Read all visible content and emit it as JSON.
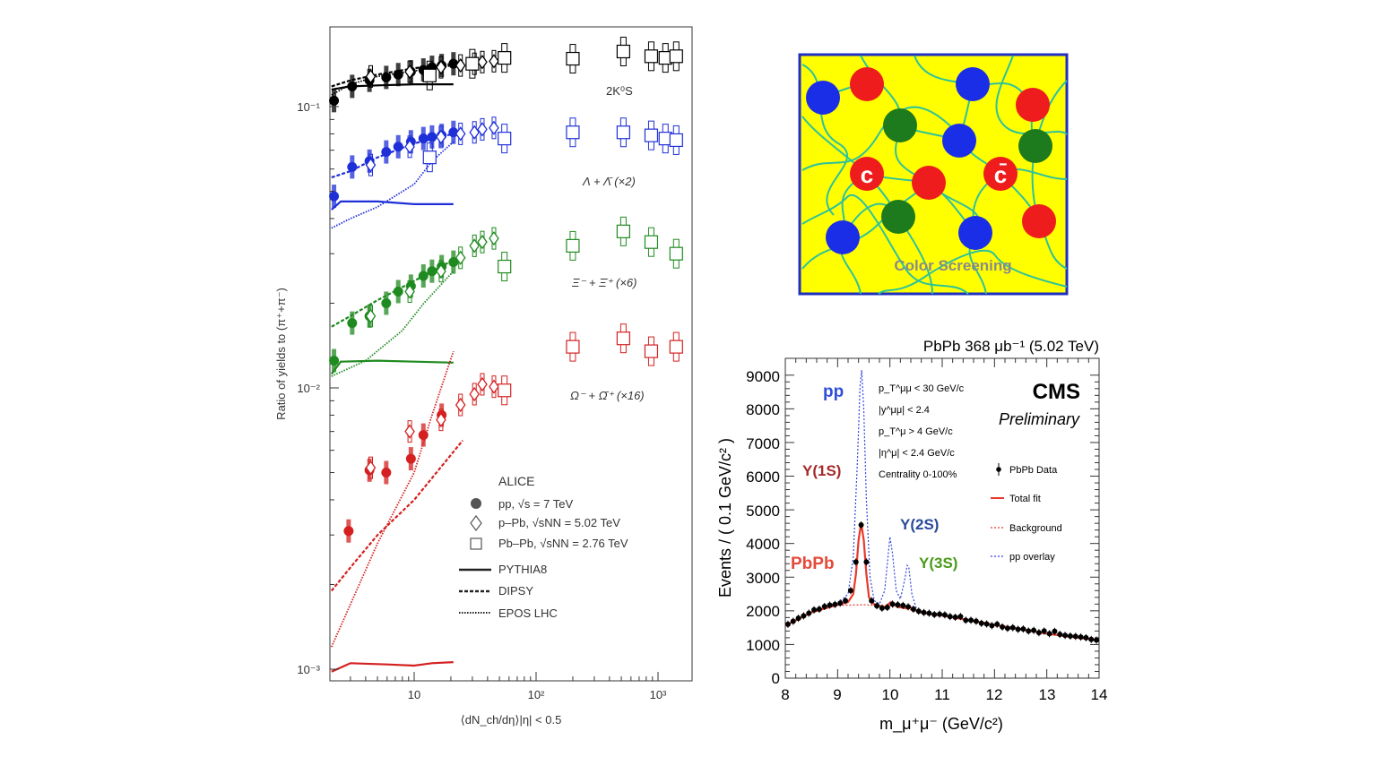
{
  "left_panel": {
    "ylabel": "Ratio of yields to (π⁺+π⁻)",
    "xlabel": "⟨dN_ch/dη⟩|η| < 0.5",
    "ytick_labels": [
      "10⁻¹",
      "10⁻²",
      "10⁻³"
    ],
    "xtick_labels": [
      "10",
      "10²",
      "10³"
    ],
    "species_labels": [
      "2K⁰S",
      "Λ + Λ̄ (×2)",
      "Ξ⁻ + Ξ̄⁺ (×6)",
      "Ω⁻ + Ω̄⁺ (×16)"
    ],
    "legend": {
      "title": "ALICE",
      "entries": [
        "pp, √s = 7 TeV",
        "p–Pb, √sNN = 5.02 TeV",
        "Pb–Pb, √sNN = 2.76 TeV",
        "PYTHIA8",
        "DIPSY",
        "EPOS LHC"
      ]
    },
    "colors": {
      "k0s": "#000000",
      "lambda": "#1f2fd8",
      "xi": "#1f8a1f",
      "omega": "#d42020"
    }
  },
  "diagram": {
    "label": "Color Screening",
    "quark_labels": [
      "c",
      "c̄"
    ],
    "colors": {
      "background": "#ffff00",
      "border": "#1f2fbf",
      "strings": "#2ec29a",
      "red": "#ee1c1c",
      "blue": "#1a2ee8",
      "green": "#1d7a1d",
      "label": "#8a8a8a"
    }
  },
  "right_panel": {
    "title": "PbPb 368 μb⁻¹ (5.02 TeV)",
    "ylabel": "Events / ( 0.1 GeV/c² )",
    "xlabel": "m_μ⁺μ⁻ (GeV/c²)",
    "ytick_labels": [
      "0",
      "1000",
      "2000",
      "3000",
      "4000",
      "5000",
      "6000",
      "7000",
      "8000",
      "9000"
    ],
    "xtick_labels": [
      "8",
      "9",
      "10",
      "11",
      "12",
      "13",
      "14"
    ],
    "brand": "CMS",
    "brand_sub": "Preliminary",
    "cuts": [
      "p_T^μμ < 30 GeV/c",
      "|y^μμ| < 2.4",
      "p_T^μ > 4 GeV/c",
      "|η^μ| < 2.4 GeV/c",
      "Centrality 0-100%"
    ],
    "peak_labels": {
      "pp": "pp",
      "y1s": "Υ(1S)",
      "pbpb": "PbPb",
      "y2s": "Υ(2S)",
      "y3s": "Υ(3S)"
    },
    "legend": [
      "PbPb Data",
      "Total fit",
      "Background",
      "pp overlay"
    ]
  },
  "chart_data": [
    {
      "type": "scatter",
      "title": "",
      "xlabel": "⟨dNch/dη⟩|η|<0.5",
      "ylabel": "Ratio of yields to (π⁺+π⁻)",
      "x_scale": "log",
      "y_scale": "log",
      "xlim": [
        2,
        1800
      ],
      "ylim": [
        0.00095,
        0.2
      ],
      "series": [
        {
          "name": "2K⁰S",
          "system": "pp",
          "x": [
            2.2,
            3.1,
            4.3,
            5.9,
            7.4,
            9.4,
            11.9,
            14.0,
            16.8,
            21.0
          ],
          "y": [
            0.105,
            0.118,
            0.124,
            0.127,
            0.13,
            0.133,
            0.135,
            0.138,
            0.14,
            0.142
          ]
        },
        {
          "name": "2K⁰S",
          "system": "p-Pb",
          "x": [
            4.4,
            9.2,
            16.6,
            24.0,
            31.2,
            36.2,
            45.1
          ],
          "y": [
            0.128,
            0.133,
            0.138,
            0.14,
            0.142,
            0.144,
            0.145
          ]
        },
        {
          "name": "2K⁰S",
          "system": "Pb-Pb",
          "x": [
            13.4,
            30.0,
            55.0,
            200,
            520,
            880,
            1150,
            1410
          ],
          "y": [
            0.129,
            0.142,
            0.149,
            0.148,
            0.157,
            0.151,
            0.149,
            0.151
          ]
        },
        {
          "name": "Λ+Λ̄ (×2)",
          "system": "pp",
          "x": [
            2.2,
            3.1,
            4.3,
            5.9,
            7.4,
            9.4,
            11.9,
            14.0,
            16.8,
            21.0
          ],
          "y": [
            0.048,
            0.061,
            0.064,
            0.069,
            0.072,
            0.075,
            0.077,
            0.078,
            0.079,
            0.081
          ]
        },
        {
          "name": "Λ+Λ̄ (×2)",
          "system": "p-Pb",
          "x": [
            4.4,
            9.2,
            16.6,
            24.0,
            31.2,
            36.2,
            45.1
          ],
          "y": [
            0.062,
            0.072,
            0.078,
            0.08,
            0.081,
            0.083,
            0.084
          ]
        },
        {
          "name": "Λ+Λ̄ (×2)",
          "system": "Pb-Pb",
          "x": [
            13.4,
            55.0,
            200,
            520,
            880,
            1150,
            1410
          ],
          "y": [
            0.066,
            0.077,
            0.081,
            0.081,
            0.079,
            0.077,
            0.076
          ]
        },
        {
          "name": "Ξ⁻+Ξ̄⁺ (×6)",
          "system": "pp",
          "x": [
            2.2,
            3.1,
            4.3,
            5.9,
            7.4,
            9.4,
            11.9,
            14.0,
            16.8,
            21.0
          ],
          "y": [
            0.0125,
            0.017,
            0.018,
            0.02,
            0.022,
            0.023,
            0.025,
            0.026,
            0.027,
            0.028
          ]
        },
        {
          "name": "Ξ⁻+Ξ̄⁺ (×6)",
          "system": "p-Pb",
          "x": [
            4.4,
            9.2,
            16.6,
            24.0,
            31.2,
            36.2,
            45.1
          ],
          "y": [
            0.018,
            0.022,
            0.026,
            0.029,
            0.032,
            0.033,
            0.034
          ]
        },
        {
          "name": "Ξ⁻+Ξ̄⁺ (×6)",
          "system": "Pb-Pb",
          "x": [
            55.0,
            200,
            520,
            880,
            1410
          ],
          "y": [
            0.027,
            0.032,
            0.036,
            0.033,
            0.03
          ]
        },
        {
          "name": "Ω⁻+Ω̄⁺ (×16)",
          "system": "pp",
          "x": [
            2.9,
            4.3,
            5.9,
            9.4,
            11.9,
            16.8
          ],
          "y": [
            0.0031,
            0.0051,
            0.005,
            0.0056,
            0.0068,
            0.008
          ]
        },
        {
          "name": "Ω⁻+Ω̄⁺ (×16)",
          "system": "p-Pb",
          "x": [
            4.4,
            9.2,
            16.6,
            24.0,
            31.2,
            36.2,
            45.1
          ],
          "y": [
            0.0052,
            0.007,
            0.0077,
            0.0087,
            0.0095,
            0.0103,
            0.0101
          ]
        },
        {
          "name": "Ω⁻+Ω̄⁺ (×16)",
          "system": "Pb-Pb",
          "x": [
            55.0,
            200,
            520,
            880,
            1410
          ],
          "y": [
            0.0098,
            0.014,
            0.015,
            0.0135,
            0.014
          ]
        }
      ],
      "model_curves": [
        {
          "name": "PYTHIA8",
          "species": "2K⁰S",
          "x": [
            2.1,
            3,
            5,
            10,
            21
          ],
          "y": [
            0.115,
            0.118,
            0.119,
            0.12,
            0.12
          ]
        },
        {
          "name": "DIPSY",
          "species": "2K⁰S",
          "x": [
            2.1,
            3,
            5,
            10,
            21
          ],
          "y": [
            0.118,
            0.124,
            0.13,
            0.137,
            0.142
          ]
        },
        {
          "name": "EPOS LHC",
          "species": "2K⁰S",
          "x": [
            2.1,
            3,
            5,
            10,
            21
          ],
          "y": [
            0.11,
            0.12,
            0.128,
            0.134,
            0.14
          ]
        },
        {
          "name": "PYTHIA8",
          "species": "Λ+Λ̄ (×2)",
          "x": [
            2.1,
            2.5,
            5,
            10,
            21
          ],
          "y": [
            0.043,
            0.046,
            0.046,
            0.045,
            0.045
          ]
        },
        {
          "name": "DIPSY",
          "species": "Λ+Λ̄ (×2)",
          "x": [
            2.1,
            3,
            5,
            10,
            21
          ],
          "y": [
            0.056,
            0.059,
            0.066,
            0.074,
            0.08
          ]
        },
        {
          "name": "EPOS LHC",
          "species": "Λ+Λ̄ (×2)",
          "x": [
            2.1,
            3,
            5,
            10,
            14,
            21
          ],
          "y": [
            0.037,
            0.04,
            0.044,
            0.053,
            0.064,
            0.075
          ]
        },
        {
          "name": "PYTHIA8",
          "species": "Ξ⁻+Ξ̄⁺ (×6)",
          "x": [
            2.1,
            2.5,
            5,
            10,
            21
          ],
          "y": [
            0.0112,
            0.0124,
            0.0125,
            0.0124,
            0.0123
          ]
        },
        {
          "name": "DIPSY",
          "species": "Ξ⁻+Ξ̄⁺ (×6)",
          "x": [
            2.1,
            3,
            5,
            10,
            21
          ],
          "y": [
            0.0165,
            0.018,
            0.0205,
            0.024,
            0.0285
          ]
        },
        {
          "name": "EPOS LHC",
          "species": "Ξ⁻+Ξ̄⁺ (×6)",
          "x": [
            2.1,
            4,
            8,
            12,
            21
          ],
          "y": [
            0.011,
            0.0125,
            0.016,
            0.02,
            0.026
          ]
        },
        {
          "name": "PYTHIA8",
          "species": "Ω⁻+Ω̄⁺ (×16)",
          "x": [
            2.1,
            3,
            6,
            10,
            14,
            21
          ],
          "y": [
            0.00098,
            0.00105,
            0.00104,
            0.00103,
            0.00105,
            0.00106
          ]
        },
        {
          "name": "DIPSY",
          "species": "Ω⁻+Ω̄⁺ (×16)",
          "x": [
            2.1,
            3,
            5,
            10,
            25
          ],
          "y": [
            0.0019,
            0.0023,
            0.003,
            0.004,
            0.0065
          ]
        },
        {
          "name": "EPOS LHC",
          "species": "Ω⁻+Ω̄⁺ (×16)",
          "x": [
            2.1,
            3,
            5,
            10,
            14,
            21
          ],
          "y": [
            0.0012,
            0.0017,
            0.0028,
            0.005,
            0.008,
            0.0135
          ]
        }
      ]
    },
    {
      "type": "line",
      "title": "PbPb 368 μb⁻¹ (5.02 TeV)",
      "xlabel": "m_μ⁺μ⁻ (GeV/c²)",
      "ylabel": "Events / ( 0.1 GeV/c² )",
      "xlim": [
        8,
        14
      ],
      "ylim": [
        0,
        9500
      ],
      "data_points": {
        "x": [
          8.05,
          8.15,
          8.25,
          8.35,
          8.45,
          8.55,
          8.65,
          8.75,
          8.85,
          8.95,
          9.05,
          9.15,
          9.25,
          9.35,
          9.45,
          9.55,
          9.65,
          9.75,
          9.85,
          9.95,
          10.05,
          10.15,
          10.25,
          10.35,
          10.45,
          10.55,
          10.65,
          10.75,
          10.85,
          10.95,
          11.05,
          11.15,
          11.25,
          11.35,
          11.45,
          11.55,
          11.65,
          11.75,
          11.85,
          11.95,
          12.05,
          12.15,
          12.25,
          12.35,
          12.45,
          12.55,
          12.65,
          12.75,
          12.85,
          12.95,
          13.05,
          13.15,
          13.25,
          13.35,
          13.45,
          13.55,
          13.65,
          13.75,
          13.85,
          13.95
        ],
        "y": [
          1600,
          1690,
          1780,
          1850,
          1930,
          2030,
          2050,
          2130,
          2170,
          2190,
          2230,
          2300,
          2600,
          3450,
          4550,
          3450,
          2300,
          2150,
          2080,
          2100,
          2200,
          2180,
          2160,
          2120,
          2050,
          1990,
          1950,
          1930,
          1890,
          1900,
          1880,
          1830,
          1810,
          1830,
          1720,
          1720,
          1690,
          1630,
          1610,
          1560,
          1600,
          1520,
          1480,
          1500,
          1450,
          1460,
          1400,
          1420,
          1350,
          1400,
          1320,
          1390,
          1300,
          1270,
          1250,
          1240,
          1220,
          1200,
          1150,
          1130
        ]
      },
      "total_fit": {
        "x": [
          8.0,
          8.5,
          9.0,
          9.2,
          9.3,
          9.35,
          9.4,
          9.45,
          9.5,
          9.55,
          9.6,
          9.7,
          9.9,
          10.02,
          10.15,
          10.3,
          10.36,
          10.45,
          10.6,
          11.0,
          12.0,
          13.0,
          14.0
        ],
        "y": [
          1560,
          1950,
          2180,
          2260,
          2500,
          3100,
          4100,
          4600,
          4100,
          3100,
          2400,
          2190,
          2110,
          2260,
          2120,
          2080,
          2150,
          2030,
          1950,
          1860,
          1580,
          1320,
          1120
        ]
      },
      "background": {
        "x": [
          8.0,
          8.5,
          9.0,
          9.5,
          10.0,
          10.5,
          11.0,
          12.0,
          13.0,
          14.0
        ],
        "y": [
          1560,
          1950,
          2160,
          2180,
          2150,
          2000,
          1860,
          1580,
          1320,
          1120
        ]
      },
      "pp_overlay": {
        "x": [
          8.0,
          8.5,
          9.0,
          9.2,
          9.3,
          9.38,
          9.43,
          9.46,
          9.5,
          9.55,
          9.62,
          9.7,
          9.8,
          9.9,
          9.95,
          10.0,
          10.05,
          10.12,
          10.2,
          10.28,
          10.33,
          10.36,
          10.42,
          10.5,
          10.6,
          11.0,
          12.0,
          13.0,
          14.0
        ],
        "y": [
          1560,
          1950,
          2200,
          2500,
          3600,
          6500,
          8700,
          9150,
          8000,
          5300,
          3000,
          2300,
          2200,
          2600,
          3400,
          4200,
          3700,
          2600,
          2350,
          2900,
          3350,
          3300,
          2500,
          2100,
          1950,
          1860,
          1580,
          1320,
          1120
        ]
      }
    }
  ]
}
